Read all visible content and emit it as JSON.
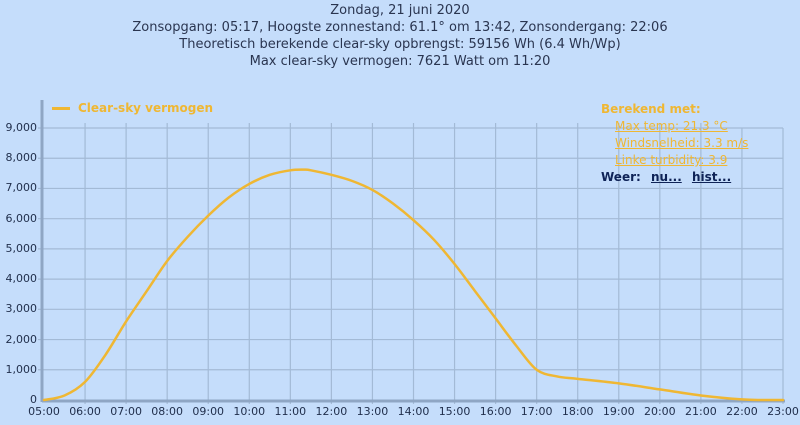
{
  "header": {
    "line1": "Zondag, 21 juni 2020",
    "line2": "Zonsopgang: 05:17, Hoogste zonnestand: 61.1° om 13:42, Zonsondergang: 22:06",
    "line3": "Theoretisch berekende clear-sky opbrengst: 59156 Wh (6.4 Wh/Wp)",
    "line4": "Max clear-sky vermogen: 7621 Watt om 11:20"
  },
  "legend": {
    "label": "Clear-sky vermogen",
    "color": "#efb733"
  },
  "info": {
    "title": "Berekend met:",
    "max_temp": "Max temp: 21.3 °C",
    "wind": "Windsnelheid: 3.3 m/s",
    "turbidity": "Linke turbidity: 3.9",
    "weather_label": "Weer:",
    "weather_now": "nu...",
    "weather_hist": "hist..."
  },
  "colors": {
    "background": "#c5ddfb",
    "grid": "#a3bad6",
    "axis": "#8fa6c4",
    "line": "#efb733"
  },
  "chart_data": {
    "type": "line",
    "title": "Clear-sky vermogen",
    "xlabel": "",
    "ylabel": "",
    "x_ticks": [
      "05:00",
      "06:00",
      "07:00",
      "08:00",
      "09:00",
      "10:00",
      "11:00",
      "12:00",
      "13:00",
      "14:00",
      "15:00",
      "16:00",
      "17:00",
      "18:00",
      "19:00",
      "20:00",
      "21:00",
      "22:00",
      "23:00"
    ],
    "y_ticks": [
      "0",
      "1,000",
      "2,000",
      "3,000",
      "4,000",
      "5,000",
      "6,000",
      "7,000",
      "8,000",
      "9,000"
    ],
    "ylim": [
      0,
      9000
    ],
    "grid": true,
    "legend_position": "top-left",
    "series": [
      {
        "name": "Clear-sky vermogen",
        "x": [
          "05:00",
          "05:30",
          "06:00",
          "06:30",
          "07:00",
          "07:30",
          "08:00",
          "08:30",
          "09:00",
          "09:30",
          "10:00",
          "10:30",
          "11:00",
          "11:20",
          "11:30",
          "12:00",
          "12:30",
          "13:00",
          "13:30",
          "14:00",
          "14:30",
          "15:00",
          "15:30",
          "16:00",
          "16:30",
          "17:00",
          "17:30",
          "18:00",
          "19:00",
          "20:00",
          "21:00",
          "22:00",
          "22:30",
          "23:00"
        ],
        "values": [
          0,
          150,
          600,
          1500,
          2600,
          3600,
          4600,
          5400,
          6100,
          6700,
          7150,
          7450,
          7600,
          7621,
          7600,
          7450,
          7250,
          6950,
          6500,
          5950,
          5300,
          4500,
          3600,
          2700,
          1800,
          1000,
          780,
          700,
          550,
          350,
          150,
          20,
          0,
          0
        ]
      }
    ]
  }
}
